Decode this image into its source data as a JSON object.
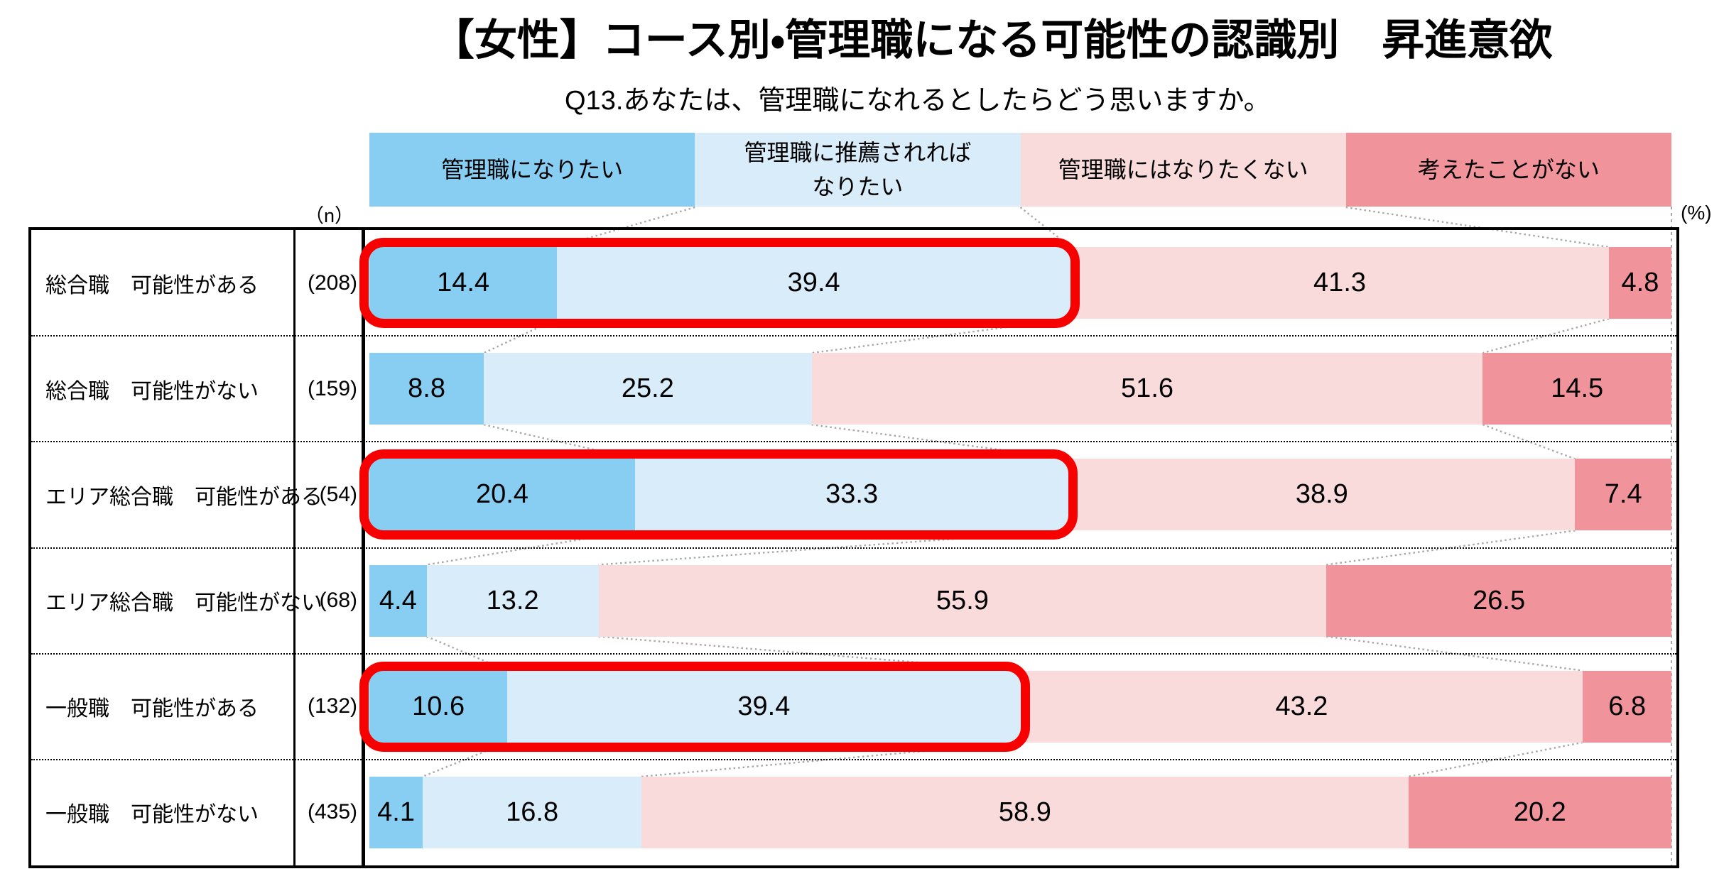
{
  "header": {
    "title": "【女性】コース別・管理職になる可能性の認識別　昇進意欲",
    "subtitle": "Q13.あなたは、管理職になれるとしたらどう思いますか。"
  },
  "axis": {
    "n_header": "（n）",
    "percent_label": "(%)"
  },
  "colors": {
    "segment1": "#88cef2",
    "segment2": "#d8ecfa",
    "segment3": "#fadbdc",
    "segment4": "#f1939a",
    "highlight_border": "#f70000",
    "connector_gray": "#a8a8a8",
    "border_black": "#000000"
  },
  "chart_data": {
    "type": "bar",
    "orientation": "horizontal",
    "stacked": true,
    "unit": "%",
    "xlim": [
      0,
      100
    ],
    "grid": false,
    "legend_position": "top",
    "legend": [
      "管理職になりたい",
      "管理職に推薦されれば\nなりたい",
      "管理職にはなりたくない",
      "考えたことがない"
    ],
    "rows": [
      {
        "label": "総合職　可能性がある",
        "n": "(208)",
        "values": [
          14.4,
          39.4,
          41.3,
          4.8
        ],
        "highlighted": true
      },
      {
        "label": "総合職　可能性がない",
        "n": "(159)",
        "values": [
          8.8,
          25.2,
          51.6,
          14.5
        ],
        "highlighted": false
      },
      {
        "label": "エリア総合職　可能性がある",
        "n": "(54)",
        "values": [
          20.4,
          33.3,
          38.9,
          7.4
        ],
        "highlighted": true
      },
      {
        "label": "エリア総合職　可能性がない",
        "n": "(68)",
        "values": [
          4.4,
          13.2,
          55.9,
          26.5
        ],
        "highlighted": false
      },
      {
        "label": "一般職　可能性がある",
        "n": "(132)",
        "values": [
          10.6,
          39.4,
          43.2,
          6.8
        ],
        "highlighted": true
      },
      {
        "label": "一般職　可能性がない",
        "n": "(435)",
        "values": [
          4.1,
          16.8,
          58.9,
          20.2
        ],
        "highlighted": false
      }
    ]
  }
}
